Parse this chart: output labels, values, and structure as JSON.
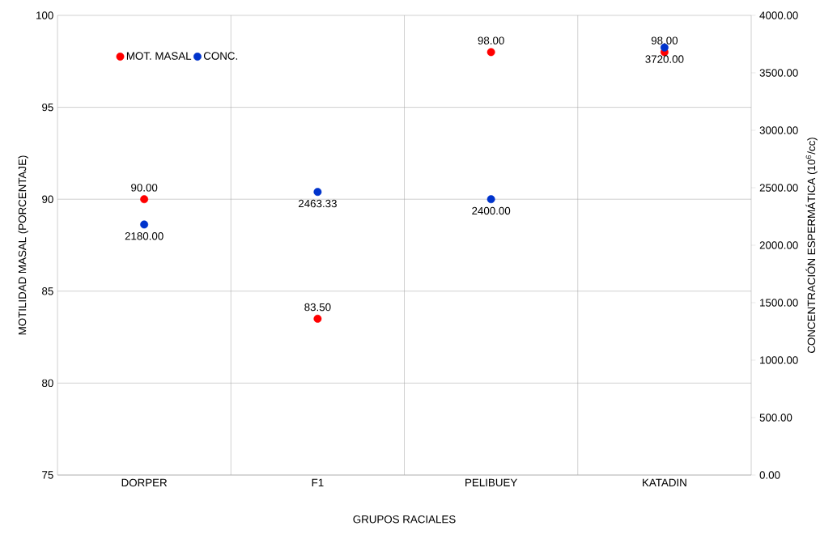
{
  "chart_data": {
    "type": "scatter",
    "xlabel": "GRUPOS RACIALES",
    "ylabel": "MOTILIDAD MASAL (PORCENTAJE)",
    "y2label": "CONCENTRACIÓN ESPERMÁTICA (10$^{6}$/cc)",
    "categories": [
      "DORPER",
      "F1",
      "PELIBUEY",
      "KATADIN"
    ],
    "series": [
      {
        "name": "MOT. MASAL",
        "color": "#ff0000",
        "values": [
          90.0,
          83.5,
          98.0,
          98.0
        ],
        "value_labels": [
          "90.00",
          "83.50",
          "98.00",
          "98.00"
        ]
      },
      {
        "name": "CONC.",
        "color": "#0033cc",
        "axis": "y2",
        "values": [
          2180.0,
          2463.33,
          2400.0,
          3720.0
        ],
        "value_labels": [
          "2180.00",
          "2463.33",
          "2400.00",
          "3720.00"
        ]
      }
    ],
    "ylim": [
      75,
      100
    ],
    "yticks": [
      75,
      80,
      85,
      90,
      95,
      100
    ],
    "y2lim": [
      0,
      4000
    ],
    "y2ticks": [
      {
        "value": 0,
        "label": "0.00"
      },
      {
        "value": 500,
        "label": "500.00"
      },
      {
        "value": 1000,
        "label": "1000.00"
      },
      {
        "value": 1500,
        "label": "1500.00"
      },
      {
        "value": 2000,
        "label": "2000.00"
      },
      {
        "value": 2500,
        "label": "2500.00"
      },
      {
        "value": 3000,
        "label": "3000.00"
      },
      {
        "value": 3500,
        "label": "3500.00"
      },
      {
        "value": 4000,
        "label": "4000.00"
      }
    ],
    "grid": true,
    "legend": "top left"
  }
}
